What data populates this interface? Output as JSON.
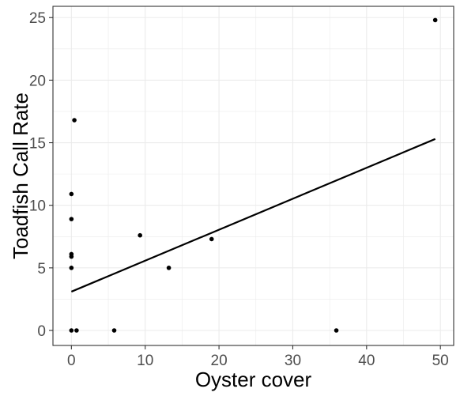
{
  "chart_data": {
    "type": "scatter",
    "title": "",
    "xlabel": "Oyster cover",
    "ylabel": "Toadfish Call Rate",
    "xlim": [
      -2.5,
      51.8
    ],
    "ylim": [
      -1.2,
      25.9
    ],
    "x_ticks": [
      0,
      10,
      20,
      30,
      40,
      50
    ],
    "y_ticks": [
      0,
      5,
      10,
      15,
      20,
      25
    ],
    "x_tick_labels": [
      "0",
      "10",
      "20",
      "30",
      "40",
      "50"
    ],
    "y_tick_labels": [
      "0",
      "5",
      "10",
      "15",
      "20",
      "25"
    ],
    "grid": true,
    "legend": "none",
    "points": [
      {
        "x": 0.0,
        "y": 0.0
      },
      {
        "x": 0.7,
        "y": 0.0
      },
      {
        "x": 5.8,
        "y": 0.0
      },
      {
        "x": 35.9,
        "y": 0.0
      },
      {
        "x": 0.0,
        "y": 5.0
      },
      {
        "x": 0.0,
        "y": 5.9
      },
      {
        "x": 0.0,
        "y": 6.1
      },
      {
        "x": 0.0,
        "y": 8.9
      },
      {
        "x": 0.0,
        "y": 10.9
      },
      {
        "x": 0.4,
        "y": 16.8
      },
      {
        "x": 9.3,
        "y": 7.6
      },
      {
        "x": 13.2,
        "y": 5.0
      },
      {
        "x": 19.0,
        "y": 7.3
      },
      {
        "x": 49.3,
        "y": 24.8
      }
    ],
    "fit_line": {
      "x": [
        0.0,
        49.3
      ],
      "y": [
        3.1,
        15.3
      ]
    },
    "colors": {
      "background": "#ffffff",
      "grid": "#ebebeb",
      "panel_border": "#333333",
      "points": "#000000",
      "fit_line": "#000000",
      "tick_text": "#4d4d4d",
      "axis_title": "#000000"
    }
  }
}
